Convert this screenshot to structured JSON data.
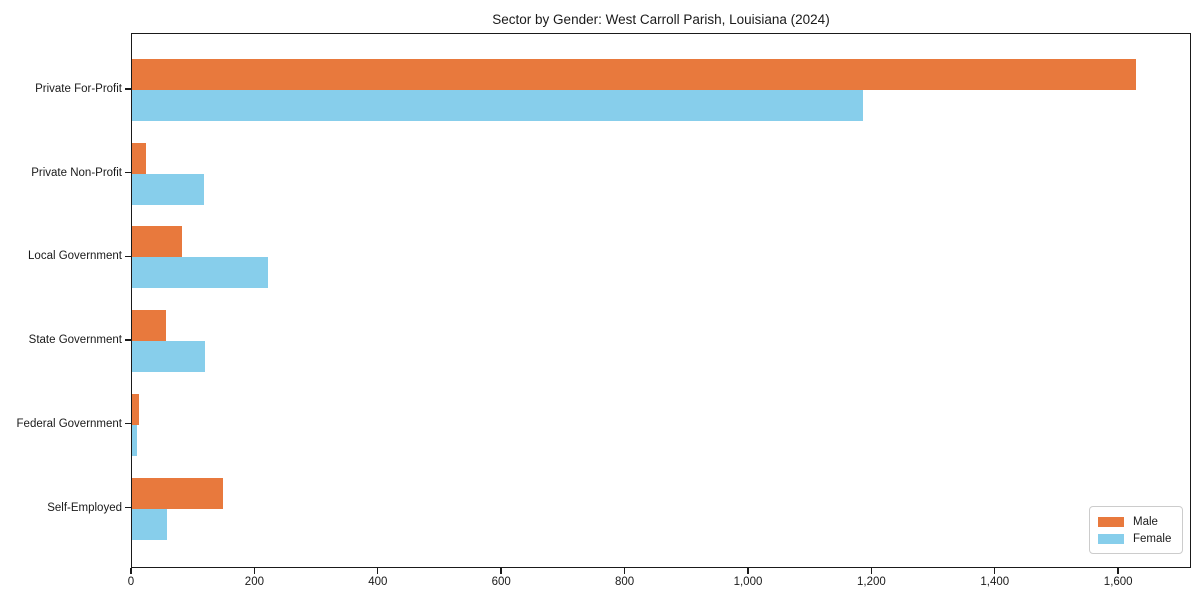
{
  "chart_data": {
    "type": "bar",
    "orientation": "horizontal",
    "title": "Sector by Gender: West Carroll Parish, Louisiana (2024)",
    "categories": [
      "Private For-Profit",
      "Private Non-Profit",
      "Local Government",
      "State Government",
      "Federal Government",
      "Self-Employed"
    ],
    "series": [
      {
        "name": "Male",
        "color": "#e8793d",
        "values": [
          1627,
          23,
          81,
          55,
          11,
          148
        ]
      },
      {
        "name": "Female",
        "color": "#87ceeb",
        "values": [
          1184,
          117,
          220,
          118,
          8,
          57
        ]
      }
    ],
    "xlim": [
      0,
      1718
    ],
    "x_ticks": [
      0,
      200,
      400,
      600,
      800,
      1000,
      1200,
      1400,
      1600
    ],
    "x_tick_labels": [
      "0",
      "200",
      "400",
      "600",
      "800",
      "1,000",
      "1,200",
      "1,400",
      "1,600"
    ],
    "ylabel": "",
    "xlabel": "",
    "grid": false,
    "legend_position": "lower right",
    "axis_color": "#1a1a1a",
    "background_color": "#ffffff"
  }
}
